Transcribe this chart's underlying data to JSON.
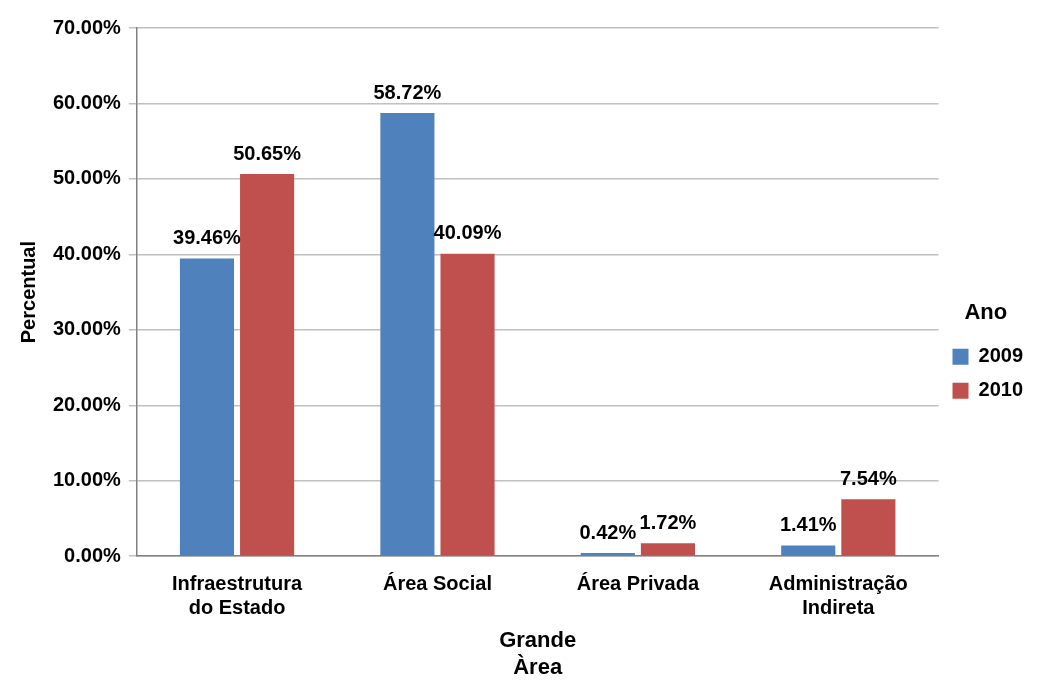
{
  "chart_data": {
    "type": "bar",
    "xlabel": "Grande Àrea",
    "ylabel": "Percentual",
    "legend_title": "Ano",
    "legend": "right",
    "grid": "y",
    "categories": [
      "Infraestrutura do Estado",
      "Área Social",
      "Área Privada",
      "Administração Indireta"
    ],
    "ylim": [
      0,
      70
    ],
    "yticks": [
      {
        "value": 0,
        "label": "0.00%"
      },
      {
        "value": 10,
        "label": "10.00%"
      },
      {
        "value": 20,
        "label": "20.00%"
      },
      {
        "value": 30,
        "label": "30.00%"
      },
      {
        "value": 40,
        "label": "40.00%"
      },
      {
        "value": 50,
        "label": "50.00%"
      },
      {
        "value": 60,
        "label": "60.00%"
      },
      {
        "value": 70,
        "label": "70.00%"
      }
    ],
    "series": [
      {
        "name": "2009",
        "color": "#4f81bd",
        "values": [
          39.46,
          58.72,
          0.42,
          1.41
        ],
        "value_labels": [
          "39.46%",
          "58.72%",
          "0.42%",
          "1.41%"
        ]
      },
      {
        "name": "2010",
        "color": "#c0504d",
        "values": [
          50.65,
          40.09,
          1.72,
          7.54
        ],
        "value_labels": [
          "50.65%",
          "40.09%",
          "1.72%",
          "7.54%"
        ]
      }
    ]
  }
}
